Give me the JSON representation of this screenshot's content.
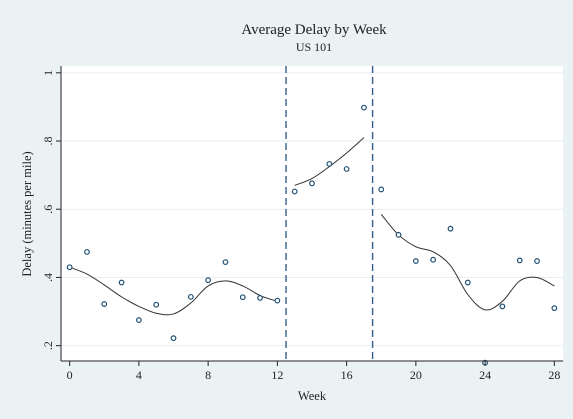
{
  "chart_data": {
    "type": "scatter",
    "title": "Average Delay by Week",
    "subtitle": "US 101",
    "xlabel": "Week",
    "ylabel": "Delay (minutes per mile)",
    "xlim": [
      -0.5,
      28.5
    ],
    "ylim": [
      0.155,
      1.02
    ],
    "x_ticks": [
      0,
      4,
      8,
      12,
      16,
      20,
      24,
      28
    ],
    "x_tick_labels": [
      "0",
      "4",
      "8",
      "12",
      "16",
      "20",
      "24",
      "28"
    ],
    "y_ticks": [
      0.2,
      0.4,
      0.6,
      0.8,
      1.0
    ],
    "y_tick_labels": [
      ".2",
      ".4",
      ".6",
      ".8",
      "1"
    ],
    "vlines": [
      12.5,
      17.5
    ],
    "points": {
      "x": [
        0,
        1,
        2,
        3,
        4,
        5,
        6,
        7,
        8,
        9,
        10,
        11,
        12,
        13,
        14,
        15,
        16,
        17,
        18,
        19,
        20,
        21,
        22,
        23,
        24,
        25,
        26,
        27,
        28
      ],
      "y": [
        0.43,
        0.475,
        0.322,
        0.385,
        0.275,
        0.32,
        0.222,
        0.343,
        0.392,
        0.445,
        0.342,
        0.34,
        0.332,
        0.652,
        0.676,
        0.733,
        0.718,
        0.898,
        0.658,
        0.525,
        0.448,
        0.452,
        0.543,
        0.385,
        0.15,
        0.315,
        0.45,
        0.448,
        0.31
      ]
    },
    "fit_segments": [
      {
        "x": [
          0,
          1,
          2,
          3,
          4,
          5,
          6,
          7,
          8,
          9,
          10,
          11,
          12
        ],
        "y": [
          0.43,
          0.41,
          0.378,
          0.343,
          0.315,
          0.295,
          0.293,
          0.325,
          0.375,
          0.39,
          0.375,
          0.347,
          0.33
        ]
      },
      {
        "x": [
          13,
          14,
          15,
          16,
          17
        ],
        "y": [
          0.67,
          0.69,
          0.725,
          0.765,
          0.81
        ]
      },
      {
        "x": [
          18,
          19,
          20,
          21,
          22,
          23,
          24,
          25,
          26,
          27,
          28
        ],
        "y": [
          0.585,
          0.525,
          0.49,
          0.475,
          0.435,
          0.35,
          0.305,
          0.33,
          0.39,
          0.4,
          0.375
        ]
      }
    ],
    "colors": {
      "background": "#eaf2f3",
      "plot_background": "#ffffff",
      "points": "#1d4f73",
      "fit_line": "#333333",
      "vline": "#345e8c",
      "grid": "#e6eef0"
    },
    "grid": true,
    "legend": "none"
  }
}
